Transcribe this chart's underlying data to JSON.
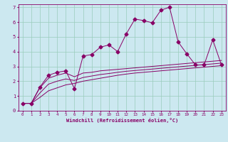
{
  "xlabel": "Windchill (Refroidissement éolien,°C)",
  "bg_color": "#cce8f0",
  "line_color": "#880066",
  "grid_color": "#99ccbb",
  "xlim": [
    -0.5,
    23.5
  ],
  "ylim": [
    0,
    7.2
  ],
  "xticks": [
    0,
    1,
    2,
    3,
    4,
    5,
    6,
    7,
    8,
    9,
    10,
    11,
    12,
    13,
    14,
    15,
    16,
    17,
    18,
    19,
    20,
    21,
    22,
    23
  ],
  "yticks": [
    0,
    1,
    2,
    3,
    4,
    5,
    6,
    7
  ],
  "lines": [
    {
      "x": [
        0,
        1,
        2,
        3,
        4,
        5,
        6,
        7,
        8,
        9,
        10,
        11,
        12,
        13,
        14,
        15,
        16,
        17,
        18,
        19,
        20,
        21,
        22,
        23
      ],
      "y": [
        0.5,
        0.5,
        1.6,
        2.4,
        2.6,
        2.7,
        1.5,
        3.7,
        3.8,
        4.3,
        4.45,
        4.0,
        5.2,
        6.2,
        6.1,
        5.95,
        6.8,
        7.0,
        4.65,
        3.85,
        3.1,
        3.1,
        4.8,
        3.1
      ],
      "marker": "D",
      "markersize": 2.5
    },
    {
      "x": [
        0,
        1,
        2,
        3,
        4,
        5,
        6,
        7,
        8,
        9,
        10,
        11,
        12,
        13,
        14,
        15,
        16,
        17,
        18,
        19,
        20,
        21,
        22,
        23
      ],
      "y": [
        0.5,
        0.5,
        1.55,
        2.2,
        2.4,
        2.55,
        2.3,
        2.55,
        2.6,
        2.7,
        2.75,
        2.8,
        2.85,
        2.9,
        2.95,
        3.0,
        3.05,
        3.1,
        3.15,
        3.2,
        3.25,
        3.3,
        3.35,
        3.4
      ],
      "marker": null,
      "markersize": 0
    },
    {
      "x": [
        0,
        1,
        2,
        3,
        4,
        5,
        6,
        7,
        8,
        9,
        10,
        11,
        12,
        13,
        14,
        15,
        16,
        17,
        18,
        19,
        20,
        21,
        22,
        23
      ],
      "y": [
        0.5,
        0.5,
        0.9,
        1.35,
        1.55,
        1.75,
        1.85,
        2.0,
        2.1,
        2.2,
        2.3,
        2.4,
        2.48,
        2.55,
        2.6,
        2.65,
        2.7,
        2.75,
        2.8,
        2.85,
        2.9,
        2.95,
        3.0,
        3.05
      ],
      "marker": null,
      "markersize": 0
    },
    {
      "x": [
        0,
        1,
        2,
        3,
        4,
        5,
        6,
        7,
        8,
        9,
        10,
        11,
        12,
        13,
        14,
        15,
        16,
        17,
        18,
        19,
        20,
        21,
        22,
        23
      ],
      "y": [
        0.5,
        0.5,
        1.2,
        1.8,
        2.0,
        2.15,
        2.05,
        2.25,
        2.35,
        2.45,
        2.52,
        2.6,
        2.67,
        2.72,
        2.77,
        2.82,
        2.87,
        2.92,
        2.97,
        3.02,
        3.07,
        3.12,
        3.17,
        3.22
      ],
      "marker": null,
      "markersize": 0
    }
  ]
}
